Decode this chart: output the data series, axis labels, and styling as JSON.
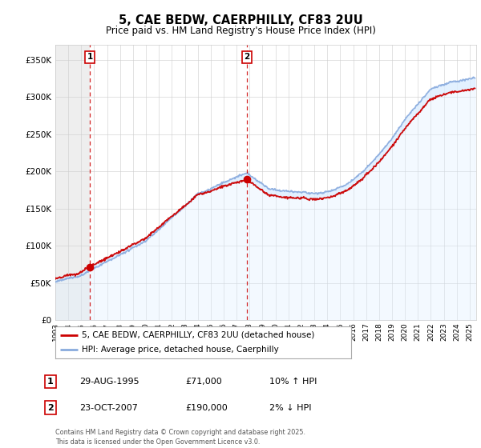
{
  "title": "5, CAE BEDW, CAERPHILLY, CF83 2UU",
  "subtitle": "Price paid vs. HM Land Registry's House Price Index (HPI)",
  "ylim": [
    0,
    370000
  ],
  "yticks": [
    0,
    50000,
    100000,
    150000,
    200000,
    250000,
    300000,
    350000
  ],
  "xlim_start": 1993.0,
  "xlim_end": 2025.5,
  "marker1_x": 1995.66,
  "marker1_y": 71000,
  "marker2_x": 2007.81,
  "marker2_y": 190000,
  "legend_line1": "5, CAE BEDW, CAERPHILLY, CF83 2UU (detached house)",
  "legend_line2": "HPI: Average price, detached house, Caerphilly",
  "table_row1": [
    "1",
    "29-AUG-1995",
    "£71,000",
    "10% ↑ HPI"
  ],
  "table_row2": [
    "2",
    "23-OCT-2007",
    "£190,000",
    "2% ↓ HPI"
  ],
  "footer": "Contains HM Land Registry data © Crown copyright and database right 2025.\nThis data is licensed under the Open Government Licence v3.0.",
  "line_color_property": "#cc0000",
  "line_color_hpi": "#88aadd",
  "fill_color_hpi": "#ddeeff",
  "hatch_bg": "#e0e0e0"
}
